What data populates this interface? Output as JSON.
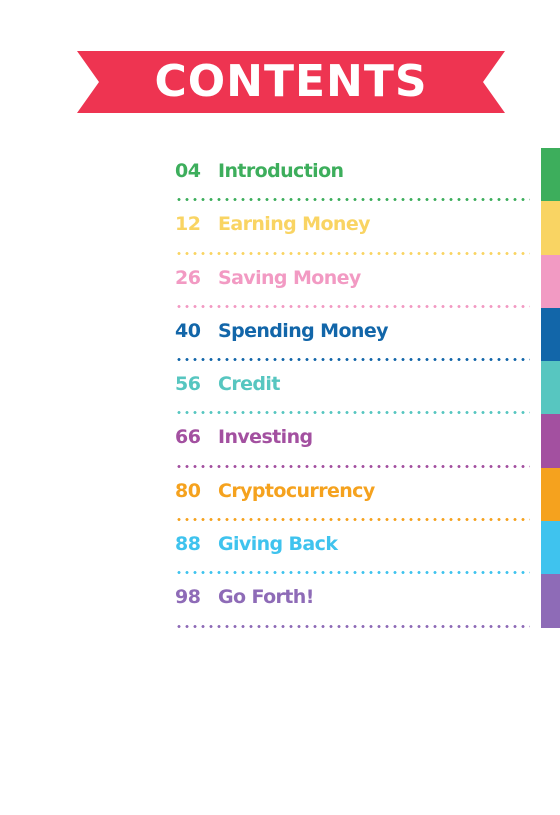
{
  "banner": {
    "title": "CONTENTS",
    "color": "#EE3451"
  },
  "toc": {
    "items": [
      {
        "page": "04",
        "title": "Introduction",
        "color": "#3DAE5C"
      },
      {
        "page": "12",
        "title": "Earning Money",
        "color": "#F9D463"
      },
      {
        "page": "26",
        "title": "Saving Money",
        "color": "#F29AC3"
      },
      {
        "page": "40",
        "title": "Spending Money",
        "color": "#1266A9"
      },
      {
        "page": "56",
        "title": "Credit",
        "color": "#57C6C0"
      },
      {
        "page": "66",
        "title": "Investing",
        "color": "#A350A0"
      },
      {
        "page": "80",
        "title": "Cryptocurrency",
        "color": "#F5A21E"
      },
      {
        "page": "88",
        "title": "Giving Back",
        "color": "#3FC3EE"
      },
      {
        "page": "98",
        "title": "Go Forth!",
        "color": "#8E6BB7"
      }
    ]
  }
}
